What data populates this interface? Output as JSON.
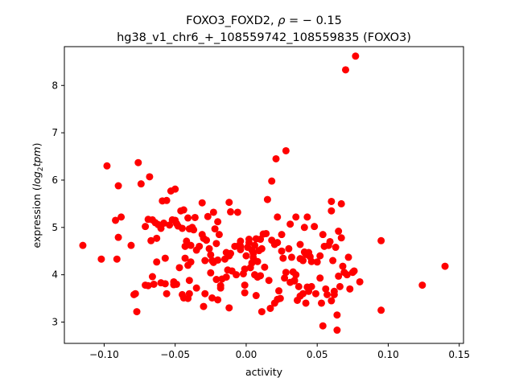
{
  "chart_data": {
    "type": "scatter",
    "title_line1_prefix": "FOXO3_FOXD2, ",
    "title_line1_rho": "ρ",
    "title_line1_suffix": " = − 0.15",
    "title_line2": "hg38_v1_chr6_+_108559742_108559835 (FOXO3)",
    "xlabel": "activity",
    "ylabel_prefix": "expression (",
    "ylabel_math": "log",
    "ylabel_sub": "2",
    "ylabel_math2": "tpm",
    "ylabel_suffix": ")",
    "xlim": [
      -0.128,
      0.153
    ],
    "ylim": [
      2.55,
      8.82
    ],
    "xticks": [
      -0.1,
      -0.05,
      0.0,
      0.05,
      0.1,
      0.15
    ],
    "xtick_labels": [
      "−0.10",
      "−0.05",
      "0.00",
      "0.05",
      "0.10",
      "0.15"
    ],
    "yticks": [
      3,
      4,
      5,
      6,
      7,
      8
    ],
    "ytick_labels": [
      "3",
      "4",
      "5",
      "6",
      "7",
      "8"
    ],
    "marker_color": "#ff0000",
    "points": [
      [
        -0.115,
        4.62
      ],
      [
        -0.102,
        4.33
      ],
      [
        -0.098,
        6.3
      ],
      [
        -0.092,
        5.15
      ],
      [
        -0.091,
        4.33
      ],
      [
        -0.09,
        5.88
      ],
      [
        -0.09,
        4.79
      ],
      [
        -0.088,
        5.22
      ],
      [
        -0.081,
        4.62
      ],
      [
        -0.079,
        3.58
      ],
      [
        -0.078,
        3.6
      ],
      [
        -0.077,
        3.22
      ],
      [
        -0.076,
        6.37
      ],
      [
        -0.074,
        5.92
      ],
      [
        -0.071,
        5.02
      ],
      [
        -0.071,
        3.78
      ],
      [
        -0.069,
        5.17
      ],
      [
        -0.069,
        3.77
      ],
      [
        -0.068,
        6.07
      ],
      [
        -0.067,
        4.72
      ],
      [
        -0.066,
        5.16
      ],
      [
        -0.066,
        3.96
      ],
      [
        -0.065,
        3.8
      ],
      [
        -0.064,
        5.1
      ],
      [
        -0.063,
        4.77
      ],
      [
        -0.063,
        4.27
      ],
      [
        -0.062,
        5.06
      ],
      [
        -0.06,
        4.98
      ],
      [
        -0.06,
        3.83
      ],
      [
        -0.059,
        5.56
      ],
      [
        -0.058,
        5.09
      ],
      [
        -0.057,
        3.81
      ],
      [
        -0.057,
        4.35
      ],
      [
        -0.056,
        5.57
      ],
      [
        -0.056,
        3.6
      ],
      [
        -0.054,
        5.05
      ],
      [
        -0.053,
        5.77
      ],
      [
        -0.052,
        5.16
      ],
      [
        -0.051,
        3.79
      ],
      [
        -0.051,
        3.85
      ],
      [
        -0.05,
        5.81
      ],
      [
        -0.05,
        5.15
      ],
      [
        -0.049,
        5.08
      ],
      [
        -0.049,
        3.8
      ],
      [
        -0.048,
        5.03
      ],
      [
        -0.047,
        4.15
      ],
      [
        -0.046,
        5.35
      ],
      [
        -0.045,
        4.98
      ],
      [
        -0.045,
        3.58
      ],
      [
        -0.044,
        3.51
      ],
      [
        -0.044,
        5.37
      ],
      [
        -0.043,
        4.6
      ],
      [
        -0.043,
        4.35
      ],
      [
        -0.042,
        4.71
      ],
      [
        -0.041,
        4.2
      ],
      [
        -0.041,
        3.5
      ],
      [
        -0.041,
        5.2
      ],
      [
        -0.04,
        3.6
      ],
      [
        -0.04,
        4.97
      ],
      [
        -0.04,
        3.88
      ],
      [
        -0.039,
        4.62
      ],
      [
        -0.039,
        4.27
      ],
      [
        -0.038,
        5.0
      ],
      [
        -0.037,
        4.95
      ],
      [
        -0.036,
        5.21
      ],
      [
        -0.035,
        4.52
      ],
      [
        -0.035,
        3.72
      ],
      [
        -0.033,
        4.6
      ],
      [
        -0.031,
        4.85
      ],
      [
        -0.031,
        5.52
      ],
      [
        -0.03,
        4.77
      ],
      [
        -0.03,
        3.33
      ],
      [
        -0.029,
        3.6
      ],
      [
        -0.029,
        4.3
      ],
      [
        -0.028,
        4.73
      ],
      [
        -0.027,
        5.23
      ],
      [
        -0.026,
        4.55
      ],
      [
        -0.025,
        4.04
      ],
      [
        -0.025,
        4.42
      ],
      [
        -0.024,
        3.51
      ],
      [
        -0.024,
        4.3
      ],
      [
        -0.023,
        5.32
      ],
      [
        -0.023,
        4.26
      ],
      [
        -0.022,
        4.97
      ],
      [
        -0.021,
        4.66
      ],
      [
        -0.021,
        3.9
      ],
      [
        -0.02,
        3.47
      ],
      [
        -0.02,
        4.31
      ],
      [
        -0.02,
        5.12
      ],
      [
        -0.019,
        4.85
      ],
      [
        -0.018,
        3.77
      ],
      [
        -0.018,
        3.72
      ],
      [
        -0.017,
        3.91
      ],
      [
        -0.015,
        4.33
      ],
      [
        -0.014,
        4.47
      ],
      [
        -0.014,
        3.95
      ],
      [
        -0.013,
        4.1
      ],
      [
        -0.012,
        4.4
      ],
      [
        -0.012,
        3.3
      ],
      [
        -0.012,
        5.53
      ],
      [
        -0.011,
        4.45
      ],
      [
        -0.011,
        5.33
      ],
      [
        -0.01,
        4.08
      ],
      [
        -0.008,
        4.6
      ],
      [
        -0.007,
        4.0
      ],
      [
        -0.006,
        5.32
      ],
      [
        -0.005,
        4.62
      ],
      [
        -0.004,
        4.53
      ],
      [
        -0.004,
        4.6
      ],
      [
        -0.004,
        4.71
      ],
      [
        -0.002,
        4.02
      ],
      [
        -0.001,
        4.12
      ],
      [
        -0.001,
        3.62
      ],
      [
        -0.001,
        3.78
      ],
      [
        0.0,
        4.4
      ],
      [
        0.001,
        4.58
      ],
      [
        0.002,
        4.68
      ],
      [
        0.002,
        4.75
      ],
      [
        0.003,
        4.15
      ],
      [
        0.004,
        4.25
      ],
      [
        0.004,
        4.52
      ],
      [
        0.005,
        4.36
      ],
      [
        0.005,
        4.45
      ],
      [
        0.006,
        4.0
      ],
      [
        0.006,
        4.62
      ],
      [
        0.007,
        4.76
      ],
      [
        0.007,
        3.56
      ],
      [
        0.008,
        3.95
      ],
      [
        0.008,
        4.28
      ],
      [
        0.009,
        4.51
      ],
      [
        0.01,
        4.75
      ],
      [
        0.01,
        3.98
      ],
      [
        0.011,
        4.55
      ],
      [
        0.011,
        3.22
      ],
      [
        0.012,
        4.86
      ],
      [
        0.013,
        4.16
      ],
      [
        0.014,
        4.87
      ],
      [
        0.015,
        5.59
      ],
      [
        0.016,
        3.88
      ],
      [
        0.017,
        3.29
      ],
      [
        0.018,
        5.98
      ],
      [
        0.018,
        4.73
      ],
      [
        0.02,
        4.64
      ],
      [
        0.02,
        3.4
      ],
      [
        0.021,
        6.45
      ],
      [
        0.022,
        4.68
      ],
      [
        0.022,
        5.22
      ],
      [
        0.022,
        3.48
      ],
      [
        0.023,
        3.66
      ],
      [
        0.024,
        3.5
      ],
      [
        0.025,
        4.85
      ],
      [
        0.025,
        4.5
      ],
      [
        0.026,
        4.35
      ],
      [
        0.027,
        3.93
      ],
      [
        0.028,
        4.05
      ],
      [
        0.028,
        6.62
      ],
      [
        0.03,
        4.55
      ],
      [
        0.031,
        5.07
      ],
      [
        0.031,
        3.84
      ],
      [
        0.032,
        4.37
      ],
      [
        0.033,
        4.06
      ],
      [
        0.034,
        3.88
      ],
      [
        0.034,
        3.87
      ],
      [
        0.035,
        4.0
      ],
      [
        0.035,
        5.22
      ],
      [
        0.036,
        3.46
      ],
      [
        0.037,
        3.75
      ],
      [
        0.038,
        3.55
      ],
      [
        0.038,
        4.34
      ],
      [
        0.038,
        4.64
      ],
      [
        0.04,
        4.3
      ],
      [
        0.04,
        3.6
      ],
      [
        0.041,
        4.48
      ],
      [
        0.041,
        5.0
      ],
      [
        0.042,
        3.4
      ],
      [
        0.042,
        4.43
      ],
      [
        0.043,
        5.22
      ],
      [
        0.043,
        3.74
      ],
      [
        0.044,
        4.47
      ],
      [
        0.044,
        3.65
      ],
      [
        0.045,
        4.38
      ],
      [
        0.046,
        3.75
      ],
      [
        0.046,
        4.28
      ],
      [
        0.048,
        5.02
      ],
      [
        0.049,
        3.6
      ],
      [
        0.05,
        4.27
      ],
      [
        0.052,
        4.4
      ],
      [
        0.052,
        3.93
      ],
      [
        0.053,
        3.4
      ],
      [
        0.054,
        4.85
      ],
      [
        0.054,
        2.92
      ],
      [
        0.055,
        4.6
      ],
      [
        0.056,
        3.7
      ],
      [
        0.057,
        3.58
      ],
      [
        0.058,
        4.62
      ],
      [
        0.059,
        4.7
      ],
      [
        0.06,
        5.35
      ],
      [
        0.06,
        5.55
      ],
      [
        0.06,
        3.45
      ],
      [
        0.061,
        4.3
      ],
      [
        0.062,
        3.58
      ],
      [
        0.062,
        3.65
      ],
      [
        0.063,
        4.58
      ],
      [
        0.064,
        3.15
      ],
      [
        0.064,
        2.83
      ],
      [
        0.065,
        4.92
      ],
      [
        0.065,
        3.97
      ],
      [
        0.066,
        3.75
      ],
      [
        0.067,
        5.5
      ],
      [
        0.067,
        4.78
      ],
      [
        0.068,
        4.18
      ],
      [
        0.069,
        4.05
      ],
      [
        0.07,
        8.33
      ],
      [
        0.071,
        4.0
      ],
      [
        0.072,
        4.37
      ],
      [
        0.073,
        3.7
      ],
      [
        0.075,
        4.05
      ],
      [
        0.076,
        4.08
      ],
      [
        0.077,
        8.62
      ],
      [
        0.08,
        3.85
      ],
      [
        0.095,
        4.72
      ],
      [
        0.095,
        3.25
      ],
      [
        0.124,
        3.78
      ],
      [
        0.14,
        4.18
      ]
    ]
  }
}
